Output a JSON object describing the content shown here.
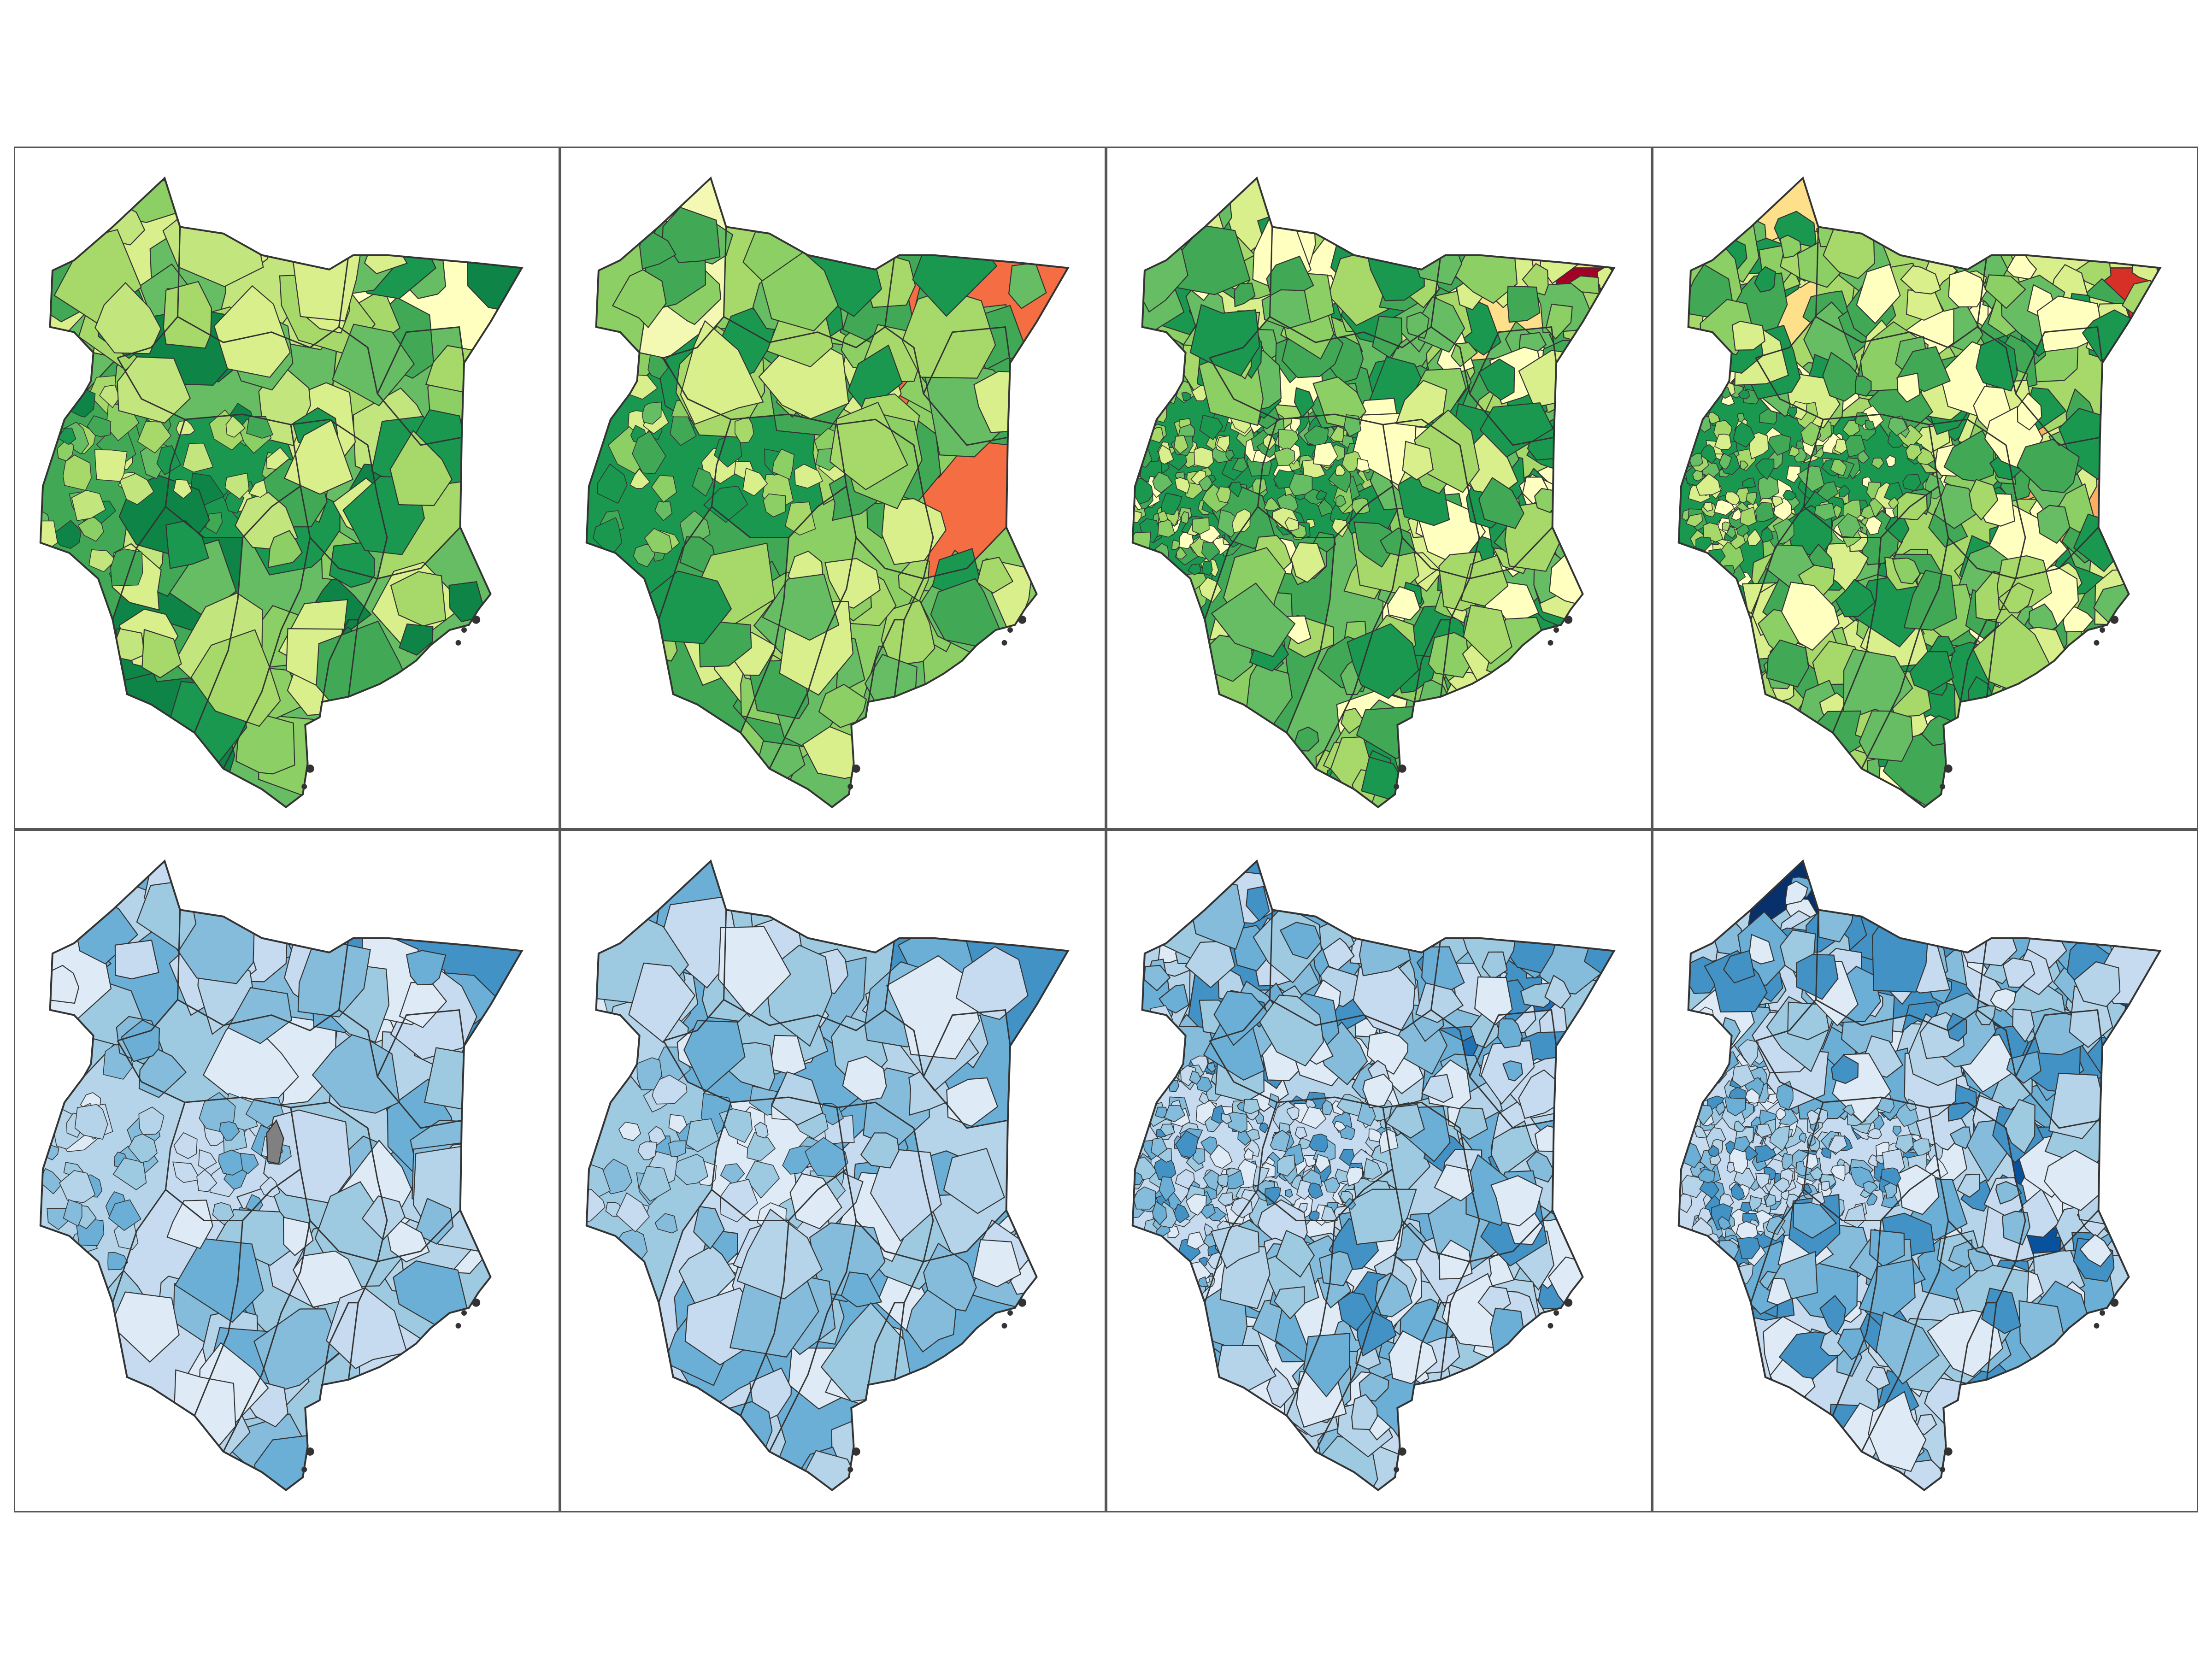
{
  "figure": {
    "rows": 2,
    "columns": 4,
    "country_shown": "Kenya",
    "outline_color": "#333333",
    "background": "#ffffff",
    "panel_border_color": "#555555",
    "missing_value_color": "#808080"
  },
  "color_schemes": {
    "top_row": [
      "#a50026",
      "#d73027",
      "#f46d43",
      "#fdae61",
      "#fee08b",
      "#ffffbf",
      "#d9ef8b",
      "#a6d96a",
      "#66bd63",
      "#1a9850",
      "#006837"
    ],
    "bottom_row": [
      "#deebf7",
      "#c6dbef",
      "#9ecae1",
      "#6baed6",
      "#4292c6",
      "#2171b5",
      "#08519c",
      "#08306b"
    ]
  },
  "panels": [
    {
      "row": 1,
      "col": 1,
      "scheme": "top_row",
      "detail": "coarse",
      "palette": [
        "#d9ef8b",
        "#c2e57e",
        "#a6d96a",
        "#8ccf64",
        "#66bd63",
        "#41a956",
        "#1a9850",
        "#0e8447"
      ],
      "region_colors": {
        "north_west": "#d9ef8b",
        "north_central": "#c2e57e",
        "north_east": "#ffffbf",
        "lake_west": "#fee08b",
        "west": "#41a956",
        "central": "#1a9850",
        "east": "#a6d96a",
        "south": "#66bd63",
        "coast": "#0e8447"
      }
    },
    {
      "row": 1,
      "col": 2,
      "scheme": "top_row",
      "detail": "coarse",
      "palette": [
        "#d9ef8b",
        "#a6d96a",
        "#8ccf64",
        "#66bd63",
        "#41a956",
        "#1a9850"
      ],
      "region_colors": {
        "north_west": "#f3f9b3",
        "north_central": "#a6d96a",
        "north_east": "#f46d43",
        "lake_west": "#fee08b",
        "west": "#1a9850",
        "central": "#1a9850",
        "east": "#f46d43",
        "south": "#8ccf64",
        "coast": "#41a956"
      }
    },
    {
      "row": 1,
      "col": 3,
      "scheme": "top_row",
      "detail": "fine",
      "palette": [
        "#ffffbf",
        "#d9ef8b",
        "#a6d96a",
        "#8ccf64",
        "#66bd63",
        "#41a956",
        "#1a9850"
      ],
      "region_colors": {
        "north_west": "#d9ef8b",
        "north_central": "#a6d96a",
        "north_east": "#fee08b",
        "lake_west": "#fdae61",
        "west": "#1a9850",
        "central": "#1a9850",
        "east": "#ffffbf",
        "south": "#66bd63",
        "coast": "#41a956",
        "far_north_east": "#a50026"
      }
    },
    {
      "row": 1,
      "col": 4,
      "scheme": "top_row",
      "detail": "fine",
      "palette": [
        "#ffffbf",
        "#d9ef8b",
        "#a6d96a",
        "#8ccf64",
        "#66bd63",
        "#41a956",
        "#1a9850"
      ],
      "region_colors": {
        "north_west": "#fee08b",
        "north_central": "#a6d96a",
        "north_east": "#d9ef8b",
        "lake_west": "#fdae61",
        "west": "#1a9850",
        "central": "#1a9850",
        "east": "#fdae61",
        "south": "#a6d96a",
        "coast": "#41a956",
        "far_north_east": "#d73027"
      }
    },
    {
      "row": 2,
      "col": 1,
      "scheme": "bottom_row",
      "detail": "coarse",
      "palette": [
        "#deebf7",
        "#c6dbef",
        "#b5d4e9",
        "#9ecae1",
        "#85bcdc",
        "#6baed6"
      ],
      "region_colors": {
        "north_west": "#6baed6",
        "north_central": "#85bcdc",
        "north_east": "#4292c6",
        "lake_west": "#c6dbef",
        "west": "#b5d4e9",
        "central": "#c6dbef",
        "east": "#b5d4e9",
        "south": "#9ecae1",
        "coast": "#c6dbef",
        "missing": "#808080"
      }
    },
    {
      "row": 2,
      "col": 2,
      "scheme": "bottom_row",
      "detail": "coarse",
      "palette": [
        "#deebf7",
        "#c6dbef",
        "#b5d4e9",
        "#9ecae1",
        "#85bcdc",
        "#6baed6"
      ],
      "region_colors": {
        "north_west": "#6baed6",
        "north_central": "#9ecae1",
        "north_east": "#4292c6",
        "lake_west": "#9ecae1",
        "west": "#9ecae1",
        "central": "#deebf7",
        "east": "#b5d4e9",
        "south": "#6baed6",
        "coast": "#c6dbef"
      }
    },
    {
      "row": 2,
      "col": 3,
      "scheme": "bottom_row",
      "detail": "fine",
      "palette": [
        "#deebf7",
        "#c6dbef",
        "#b5d4e9",
        "#9ecae1",
        "#85bcdc",
        "#6baed6",
        "#4292c6"
      ],
      "region_colors": {
        "north_west": "#4292c6",
        "north_central": "#6baed6",
        "north_east": "#2171b5",
        "lake_west": "#08519c",
        "west": "#c6dbef",
        "central": "#c6dbef",
        "east": "#6baed6",
        "south": "#b5d4e9",
        "coast": "#deebf7",
        "far_north_east": "#08306b"
      }
    },
    {
      "row": 2,
      "col": 4,
      "scheme": "bottom_row",
      "detail": "fine",
      "palette": [
        "#deebf7",
        "#c6dbef",
        "#b5d4e9",
        "#9ecae1",
        "#85bcdc",
        "#6baed6",
        "#4292c6"
      ],
      "region_colors": {
        "north_west": "#08306b",
        "north_central": "#4292c6",
        "north_east": "#6baed6",
        "lake_west": "#2171b5",
        "west": "#c6dbef",
        "central": "#c6dbef",
        "east": "#08519c",
        "south": "#b5d4e9",
        "coast": "#c6dbef",
        "far_north_east": "#08519c"
      }
    }
  ]
}
